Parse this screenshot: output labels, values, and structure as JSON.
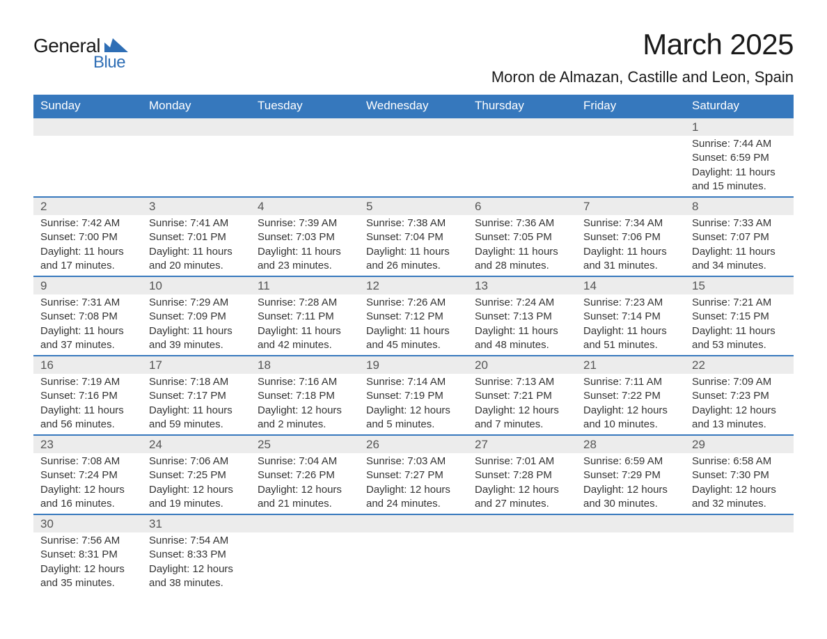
{
  "brand": {
    "text_general": "General",
    "text_blue": "Blue",
    "shape_color": "#2e6eb5"
  },
  "title": "March 2025",
  "location": "Moron de Almazan, Castille and Leon, Spain",
  "colors": {
    "header_bg": "#3678bd",
    "header_text": "#ffffff",
    "daynum_bg": "#ececec",
    "border_top": "#3678bd",
    "body_text": "#333333",
    "daynum_text": "#555555",
    "page_bg": "#ffffff"
  },
  "typography": {
    "title_fontsize": 42,
    "location_fontsize": 22,
    "dayheader_fontsize": 17,
    "daynum_fontsize": 17,
    "details_fontsize": 15,
    "font_family": "Arial"
  },
  "day_headers": [
    "Sunday",
    "Monday",
    "Tuesday",
    "Wednesday",
    "Thursday",
    "Friday",
    "Saturday"
  ],
  "labels": {
    "sunrise": "Sunrise:",
    "sunset": "Sunset:",
    "daylight": "Daylight:"
  },
  "weeks": [
    [
      null,
      null,
      null,
      null,
      null,
      null,
      {
        "day": "1",
        "sunrise": "7:44 AM",
        "sunset": "6:59 PM",
        "daylight": "11 hours and 15 minutes."
      }
    ],
    [
      {
        "day": "2",
        "sunrise": "7:42 AM",
        "sunset": "7:00 PM",
        "daylight": "11 hours and 17 minutes."
      },
      {
        "day": "3",
        "sunrise": "7:41 AM",
        "sunset": "7:01 PM",
        "daylight": "11 hours and 20 minutes."
      },
      {
        "day": "4",
        "sunrise": "7:39 AM",
        "sunset": "7:03 PM",
        "daylight": "11 hours and 23 minutes."
      },
      {
        "day": "5",
        "sunrise": "7:38 AM",
        "sunset": "7:04 PM",
        "daylight": "11 hours and 26 minutes."
      },
      {
        "day": "6",
        "sunrise": "7:36 AM",
        "sunset": "7:05 PM",
        "daylight": "11 hours and 28 minutes."
      },
      {
        "day": "7",
        "sunrise": "7:34 AM",
        "sunset": "7:06 PM",
        "daylight": "11 hours and 31 minutes."
      },
      {
        "day": "8",
        "sunrise": "7:33 AM",
        "sunset": "7:07 PM",
        "daylight": "11 hours and 34 minutes."
      }
    ],
    [
      {
        "day": "9",
        "sunrise": "7:31 AM",
        "sunset": "7:08 PM",
        "daylight": "11 hours and 37 minutes."
      },
      {
        "day": "10",
        "sunrise": "7:29 AM",
        "sunset": "7:09 PM",
        "daylight": "11 hours and 39 minutes."
      },
      {
        "day": "11",
        "sunrise": "7:28 AM",
        "sunset": "7:11 PM",
        "daylight": "11 hours and 42 minutes."
      },
      {
        "day": "12",
        "sunrise": "7:26 AM",
        "sunset": "7:12 PM",
        "daylight": "11 hours and 45 minutes."
      },
      {
        "day": "13",
        "sunrise": "7:24 AM",
        "sunset": "7:13 PM",
        "daylight": "11 hours and 48 minutes."
      },
      {
        "day": "14",
        "sunrise": "7:23 AM",
        "sunset": "7:14 PM",
        "daylight": "11 hours and 51 minutes."
      },
      {
        "day": "15",
        "sunrise": "7:21 AM",
        "sunset": "7:15 PM",
        "daylight": "11 hours and 53 minutes."
      }
    ],
    [
      {
        "day": "16",
        "sunrise": "7:19 AM",
        "sunset": "7:16 PM",
        "daylight": "11 hours and 56 minutes."
      },
      {
        "day": "17",
        "sunrise": "7:18 AM",
        "sunset": "7:17 PM",
        "daylight": "11 hours and 59 minutes."
      },
      {
        "day": "18",
        "sunrise": "7:16 AM",
        "sunset": "7:18 PM",
        "daylight": "12 hours and 2 minutes."
      },
      {
        "day": "19",
        "sunrise": "7:14 AM",
        "sunset": "7:19 PM",
        "daylight": "12 hours and 5 minutes."
      },
      {
        "day": "20",
        "sunrise": "7:13 AM",
        "sunset": "7:21 PM",
        "daylight": "12 hours and 7 minutes."
      },
      {
        "day": "21",
        "sunrise": "7:11 AM",
        "sunset": "7:22 PM",
        "daylight": "12 hours and 10 minutes."
      },
      {
        "day": "22",
        "sunrise": "7:09 AM",
        "sunset": "7:23 PM",
        "daylight": "12 hours and 13 minutes."
      }
    ],
    [
      {
        "day": "23",
        "sunrise": "7:08 AM",
        "sunset": "7:24 PM",
        "daylight": "12 hours and 16 minutes."
      },
      {
        "day": "24",
        "sunrise": "7:06 AM",
        "sunset": "7:25 PM",
        "daylight": "12 hours and 19 minutes."
      },
      {
        "day": "25",
        "sunrise": "7:04 AM",
        "sunset": "7:26 PM",
        "daylight": "12 hours and 21 minutes."
      },
      {
        "day": "26",
        "sunrise": "7:03 AM",
        "sunset": "7:27 PM",
        "daylight": "12 hours and 24 minutes."
      },
      {
        "day": "27",
        "sunrise": "7:01 AM",
        "sunset": "7:28 PM",
        "daylight": "12 hours and 27 minutes."
      },
      {
        "day": "28",
        "sunrise": "6:59 AM",
        "sunset": "7:29 PM",
        "daylight": "12 hours and 30 minutes."
      },
      {
        "day": "29",
        "sunrise": "6:58 AM",
        "sunset": "7:30 PM",
        "daylight": "12 hours and 32 minutes."
      }
    ],
    [
      {
        "day": "30",
        "sunrise": "7:56 AM",
        "sunset": "8:31 PM",
        "daylight": "12 hours and 35 minutes."
      },
      {
        "day": "31",
        "sunrise": "7:54 AM",
        "sunset": "8:33 PM",
        "daylight": "12 hours and 38 minutes."
      },
      null,
      null,
      null,
      null,
      null
    ]
  ]
}
